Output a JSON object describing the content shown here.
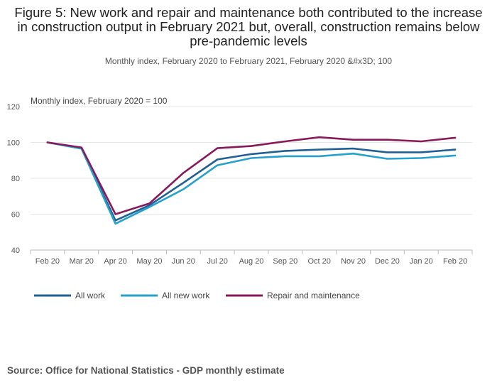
{
  "chart_data": {
    "type": "line",
    "title": "Figure 5: New work and repair and maintenance both contributed to the increase in construction output in February 2021 but, overall, construction remains below pre-pandemic levels",
    "subtitle": "Monthly index, February 2020 to February 2021, February 2020 &#x3D; 100",
    "ylabel": "Monthly index, February 2020 = 100",
    "xlabel": "",
    "ylim": [
      40,
      120
    ],
    "yticks": [
      40,
      60,
      80,
      100,
      120
    ],
    "categories": [
      "Feb 20",
      "Mar 20",
      "Apr 20",
      "May 20",
      "Jun 20",
      "Jul 20",
      "Aug 20",
      "Sep 20",
      "Oct 20",
      "Nov 20",
      "Dec 20",
      "Jan 20",
      "Feb 20"
    ],
    "grid": true,
    "legend_position": "bottom-left",
    "series": [
      {
        "name": "All work",
        "color": "#206095",
        "values": [
          100,
          96.8,
          56.5,
          65,
          77.5,
          90.5,
          93.5,
          95.3,
          96,
          96.6,
          94.5,
          94.5,
          96
        ]
      },
      {
        "name": "All new work",
        "color": "#27a0cc",
        "values": [
          100,
          96.5,
          54.7,
          64,
          73.9,
          87.3,
          91.3,
          92.3,
          92.3,
          93.8,
          90.9,
          91.3,
          92.7
        ]
      },
      {
        "name": "Repair and maintenance",
        "color": "#871a5b",
        "values": [
          100,
          97.2,
          60,
          66,
          83,
          96.8,
          98,
          100.6,
          102.9,
          101.5,
          101.5,
          100.6,
          102.6
        ]
      }
    ]
  },
  "source": "Source: Office for National Statistics - GDP monthly estimate"
}
